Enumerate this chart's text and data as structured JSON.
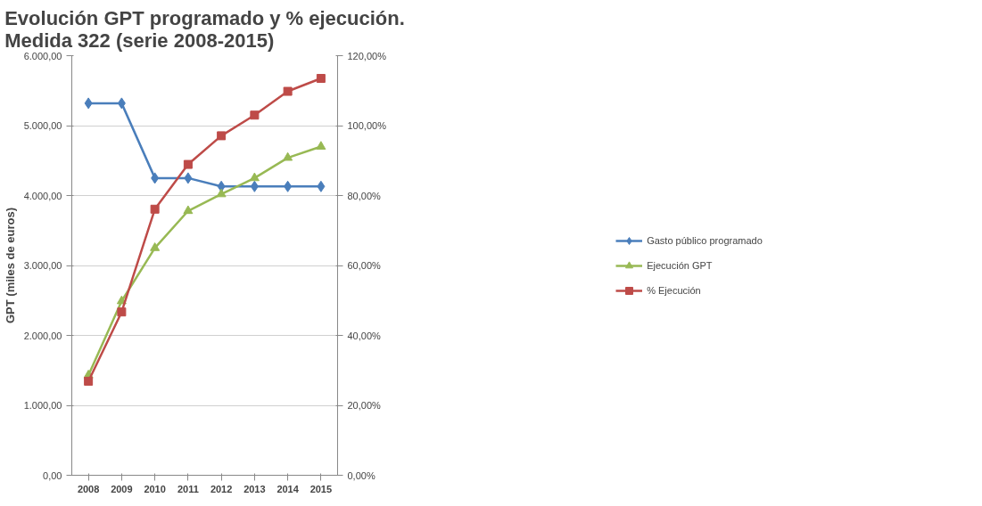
{
  "chart_data": {
    "type": "line",
    "title": "Evolución GPT programado y % ejecución.\nMedida 322 (serie 2008-2015)",
    "ylabel": "GPT (miles de euros)",
    "categories": [
      "2008",
      "2009",
      "2010",
      "2011",
      "2012",
      "2013",
      "2014",
      "2015"
    ],
    "series": [
      {
        "name": "Gasto público programado",
        "color": "#4a7ebb",
        "marker": "diamond",
        "values": [
          5320,
          5320,
          4250,
          4250,
          4130,
          4130,
          4130,
          4130
        ]
      },
      {
        "name": "Ejecución GPT",
        "color": "#98b954",
        "marker": "triangle",
        "values": [
          1430,
          2490,
          3250,
          3780,
          4020,
          4250,
          4540,
          4700
        ]
      },
      {
        "name": "% Ejecución",
        "color": "#be4b48",
        "marker": "square",
        "axis": "y2",
        "values": [
          26.9,
          46.7,
          76.1,
          88.9,
          97.1,
          103.0,
          109.8,
          113.5
        ]
      }
    ],
    "ylim": [
      0,
      6000
    ],
    "yticks": [
      {
        "value": 0,
        "label": "0,00"
      },
      {
        "value": 1000,
        "label": "1.000,00"
      },
      {
        "value": 2000,
        "label": "2.000,00"
      },
      {
        "value": 3000,
        "label": "3.000,00"
      },
      {
        "value": 4000,
        "label": "4.000,00"
      },
      {
        "value": 5000,
        "label": "5.000,00"
      },
      {
        "value": 6000,
        "label": "6.000,00"
      }
    ],
    "y2lim": [
      0,
      120
    ],
    "y2ticks": [
      {
        "value": 0,
        "label": "0,00%"
      },
      {
        "value": 20,
        "label": "20,00%"
      },
      {
        "value": 40,
        "label": "40,00%"
      },
      {
        "value": 60,
        "label": "60,00%"
      },
      {
        "value": 80,
        "label": "80,00%"
      },
      {
        "value": 100,
        "label": "100,00%"
      },
      {
        "value": 120,
        "label": "120,00%"
      }
    ],
    "grid": "y",
    "legend": "right",
    "line_style": "solid"
  }
}
